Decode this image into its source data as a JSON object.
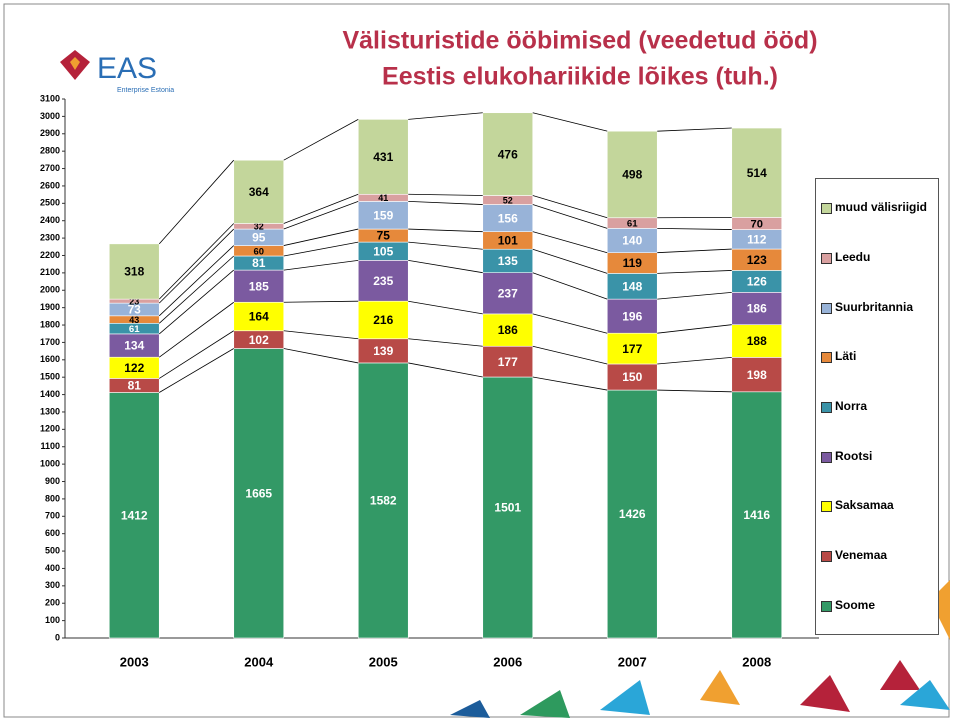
{
  "chart_data": {
    "type": "stacked-bar",
    "title": "Välisturistide ööbimised (veedetud ööd)",
    "subtitle": "Eestis elukohariikide lõikes (tuh.)",
    "logo": {
      "name": "EAS",
      "tagline": "Enterprise Estonia"
    },
    "categories": [
      "2003",
      "2004",
      "2005",
      "2006",
      "2007",
      "2008"
    ],
    "series": [
      {
        "name": "Soome",
        "color": "#339966",
        "label_color": "#ffffff",
        "values": [
          1412,
          1665,
          1582,
          1501,
          1426,
          1416
        ]
      },
      {
        "name": "Venemaa",
        "color": "#b84a47",
        "label_color": "#ffffff",
        "values": [
          81,
          102,
          139,
          177,
          150,
          198
        ]
      },
      {
        "name": "Saksamaa",
        "color": "#ffff00",
        "label_color": "#000000",
        "values": [
          122,
          164,
          216,
          186,
          177,
          188
        ]
      },
      {
        "name": "Rootsi",
        "color": "#7b5aa0",
        "label_color": "#ffffff",
        "values": [
          134,
          185,
          235,
          237,
          196,
          186
        ]
      },
      {
        "name": "Norra",
        "color": "#3a93a8",
        "label_color": "#ffffff",
        "values": [
          61,
          81,
          105,
          135,
          148,
          126
        ]
      },
      {
        "name": "Läti",
        "color": "#e6893b",
        "label_color": "#000000",
        "values": [
          43,
          60,
          75,
          101,
          119,
          123
        ]
      },
      {
        "name": "Suurbritannia",
        "color": "#98b3d8",
        "label_color": "#ffffff",
        "values": [
          73,
          95,
          159,
          156,
          140,
          112
        ]
      },
      {
        "name": "Leedu",
        "color": "#d9a0a0",
        "label_color": "#000000",
        "values": [
          23,
          32,
          41,
          52,
          61,
          70
        ]
      },
      {
        "name": "muud välisriigid",
        "color": "#c3d69b",
        "label_color": "#000000",
        "values": [
          318,
          364,
          431,
          476,
          498,
          514
        ]
      }
    ],
    "ylim": [
      0,
      3100
    ],
    "yticks": [
      0,
      100,
      200,
      300,
      400,
      500,
      600,
      700,
      800,
      900,
      1000,
      1100,
      1200,
      1300,
      1400,
      1500,
      1600,
      1700,
      1800,
      1900,
      2000,
      2100,
      2200,
      2300,
      2400,
      2500,
      2600,
      2700,
      2800,
      2900,
      3000,
      3100
    ],
    "grid": false,
    "legend": "right"
  }
}
